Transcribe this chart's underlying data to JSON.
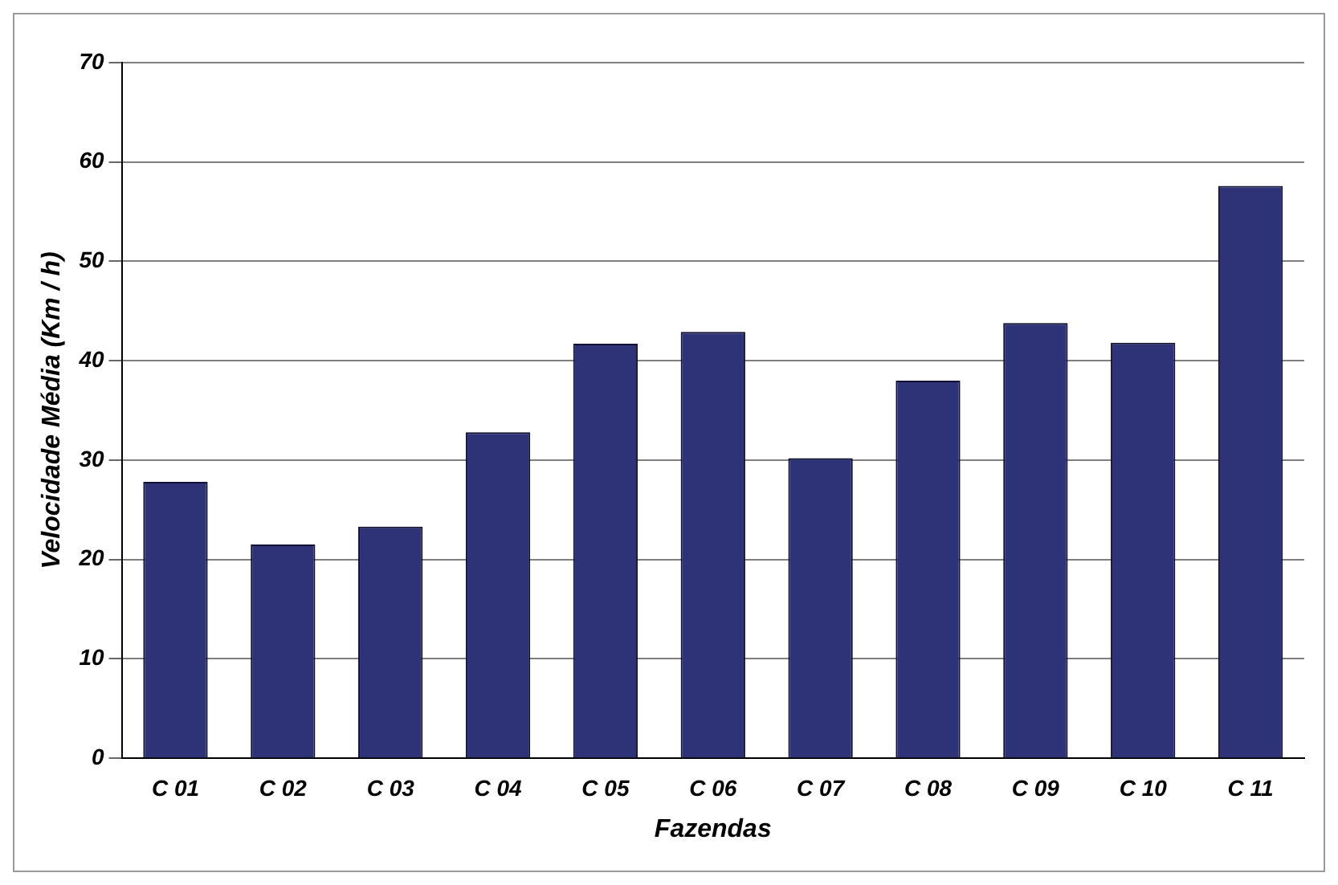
{
  "chart_data": {
    "type": "bar",
    "xlabel": "Fazendas",
    "ylabel": "Velocidade Média (Km / h)",
    "categories": [
      "C 01",
      "C 02",
      "C 03",
      "C 04",
      "C 05",
      "C 06",
      "C 07",
      "C 08",
      "C 09",
      "C 10",
      "C 11"
    ],
    "values": [
      27.8,
      21.5,
      23.3,
      32.8,
      41.7,
      42.9,
      30.2,
      38.0,
      43.8,
      41.8,
      57.6
    ],
    "color": "#2e3276",
    "ylim": [
      0,
      70
    ],
    "yticks": [
      0,
      10,
      20,
      30,
      40,
      50,
      60,
      70
    ],
    "grid": "y",
    "legend": false
  }
}
